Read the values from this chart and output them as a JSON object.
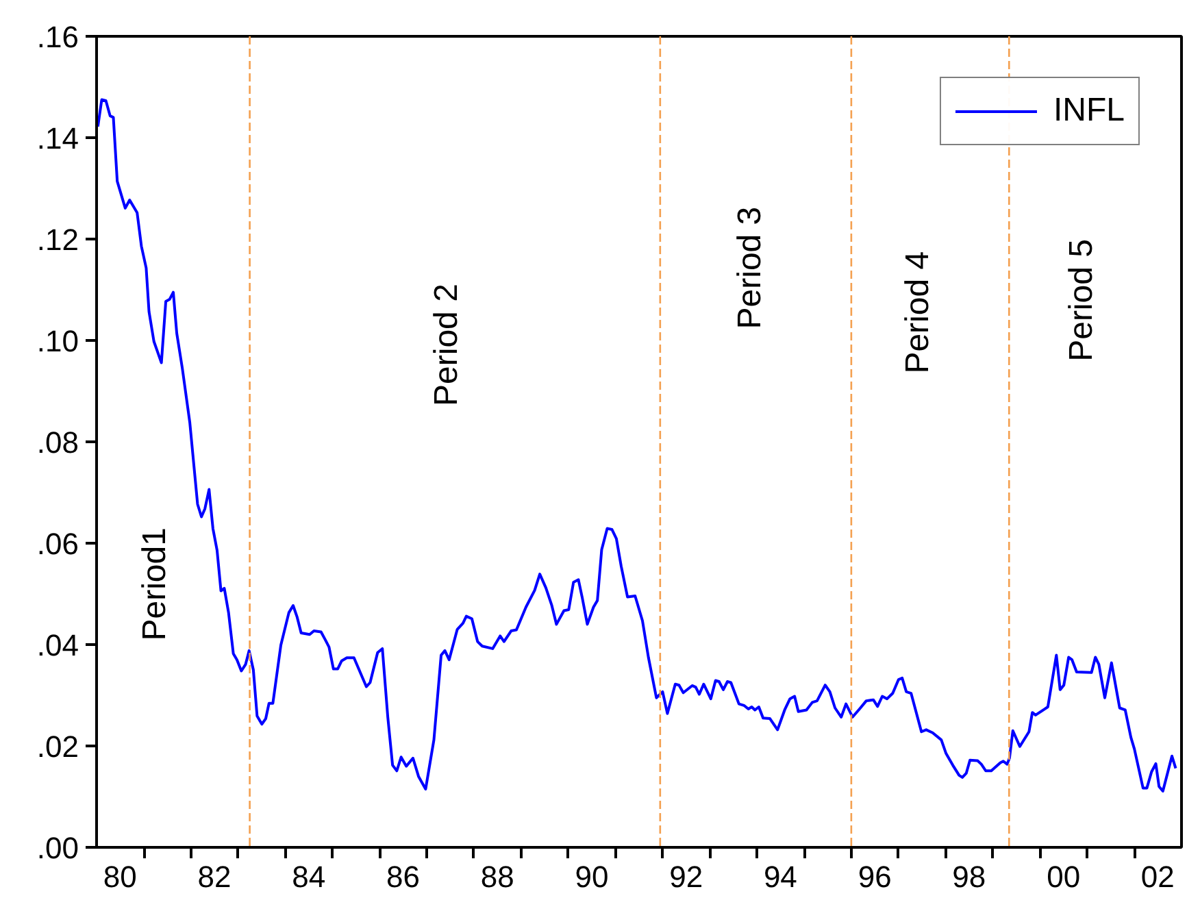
{
  "chart_data": {
    "type": "line",
    "x": [
      "1980-01-11",
      "1980-02-10",
      "1980-03-13",
      "1980-04-15",
      "1980-05-10",
      "1980-06-09",
      "1980-08-10",
      "1980-09-13",
      "1980-11-10",
      "1980-12-13",
      "1981-01-19",
      "1981-02-10",
      "1981-03-20",
      "1981-05-17",
      "1981-06-20",
      "1981-07-19",
      "1981-08-17",
      "1981-09-13",
      "1981-10-26",
      "1981-12-23",
      "1982-02-21",
      "1982-03-23",
      "1982-04-19",
      "1982-05-21",
      "1982-06-20",
      "1982-07-22",
      "1982-08-21",
      "1982-09-16",
      "1982-10-19",
      "1982-11-25",
      "1982-12-23",
      "1983-01-26",
      "1983-02-28",
      "1983-03-27",
      "1983-04-29",
      "1983-05-28",
      "1983-07-04",
      "1983-08-03",
      "1983-08-28",
      "1983-09-27",
      "1983-11-28",
      "1984-01-29",
      "1984-03-02",
      "1984-04-01",
      "1984-05-03",
      "1984-07-08",
      "1984-08-10",
      "1984-10-04",
      "1984-11-07",
      "1984-12-05",
      "1985-01-08",
      "1985-02-10",
      "1985-03-13",
      "1985-04-22",
      "1985-06-16",
      "1985-09-20",
      "1985-10-19",
      "1985-12-16",
      "1986-01-22",
      "1986-03-05",
      "1986-04-11",
      "1986-05-14",
      "1986-06-16",
      "1986-07-26",
      "1986-09-16",
      "1986-10-29",
      "1986-12-23",
      "1987-02-25",
      "1987-04-22",
      "1987-05-21",
      "1987-06-23",
      "1987-08-25",
      "1987-10-08",
      "1987-11-03",
      "1987-12-16",
      "1988-01-29",
      "1988-03-05",
      "1988-05-25",
      "1988-07-22",
      "1988-08-21",
      "1988-10-15",
      "1988-11-25",
      "1989-02-07",
      "1989-04-15",
      "1989-05-25",
      "1989-07-11",
      "1989-08-25",
      "1989-10-01",
      "1989-11-28",
      "1990-01-04",
      "1990-02-10",
      "1990-03-20",
      "1990-04-19",
      "1990-05-28",
      "1990-07-15",
      "1990-08-14",
      "1990-09-16",
      "1990-10-29",
      "1990-12-05",
      "1991-01-08",
      "1991-02-14",
      "1991-04-04",
      "1991-06-02",
      "1991-07-29",
      "1991-09-13",
      "1991-11-14",
      "1992-01-01",
      "1992-02-07",
      "1992-04-08",
      "1992-05-07",
      "1992-06-09",
      "1992-08-17",
      "1992-09-13",
      "1992-10-11",
      "1992-11-14",
      "1993-01-08",
      "1993-02-14",
      "1993-03-13",
      "1993-04-15",
      "1993-05-17",
      "1993-06-13",
      "1993-08-14",
      "1993-09-22",
      "1993-10-26",
      "1993-11-21",
      "1993-12-16",
      "1994-01-15",
      "1994-02-17",
      "1994-04-11",
      "1994-06-09",
      "1994-08-03",
      "1994-09-13",
      "1994-10-19",
      "1994-11-17",
      "1995-01-19",
      "1995-03-05",
      "1995-04-11",
      "1995-06-13",
      "1995-07-19",
      "1995-08-28",
      "1995-10-15",
      "1995-11-21",
      "1996-01-11",
      "1996-03-05",
      "1996-04-26",
      "1996-06-20",
      "1996-07-22",
      "1996-08-28",
      "1996-10-04",
      "1996-11-17",
      "1997-01-01",
      "1997-01-29",
      "1997-03-02",
      "1997-04-08",
      "1997-06-27",
      "1997-08-03",
      "1997-09-22",
      "1997-11-28",
      "1998-01-04",
      "1998-02-25",
      "1998-04-15",
      "1998-05-10",
      "1998-06-09",
      "1998-07-08",
      "1998-09-05",
      "1998-10-04",
      "1998-11-07",
      "1998-12-20",
      "1999-02-28",
      "1999-03-23",
      "1999-04-22",
      "1999-05-10",
      "1999-06-05",
      "1999-07-29",
      "1999-10-08",
      "1999-11-03",
      "1999-11-28",
      "2000-03-02",
      "2000-05-07",
      "2000-06-05",
      "2000-07-04",
      "2000-08-10",
      "2000-09-05",
      "2000-10-11",
      "2001-02-03",
      "2001-03-05",
      "2001-04-01",
      "2001-05-17",
      "2001-07-08",
      "2001-09-09",
      "2001-10-22",
      "2001-12-05",
      "2002-01-01",
      "2002-03-09",
      "2002-04-08",
      "2002-05-14",
      "2002-06-16",
      "2002-07-11",
      "2002-08-10",
      "2002-10-19",
      "2002-11-17"
    ],
    "series": [
      {
        "name": "INFL",
        "color": "#0000ff",
        "values": [
          0.1422,
          0.1475,
          0.1473,
          0.1443,
          0.144,
          0.1314,
          0.1261,
          0.1277,
          0.1252,
          0.1186,
          0.1143,
          0.1057,
          0.0998,
          0.0956,
          0.1077,
          0.1081,
          0.1095,
          0.1014,
          0.0945,
          0.0838,
          0.0677,
          0.0652,
          0.0668,
          0.0706,
          0.0629,
          0.0586,
          0.0506,
          0.0511,
          0.0463,
          0.0382,
          0.037,
          0.0348,
          0.0361,
          0.0388,
          0.035,
          0.0259,
          0.0243,
          0.0254,
          0.0284,
          0.0284,
          0.0399,
          0.0463,
          0.0477,
          0.0455,
          0.0423,
          0.042,
          0.0427,
          0.0425,
          0.0409,
          0.0395,
          0.0352,
          0.0352,
          0.0368,
          0.0374,
          0.0374,
          0.0317,
          0.0325,
          0.0384,
          0.0392,
          0.0257,
          0.0162,
          0.0151,
          0.0178,
          0.016,
          0.0176,
          0.014,
          0.0115,
          0.0212,
          0.0379,
          0.0388,
          0.037,
          0.043,
          0.0442,
          0.0456,
          0.0451,
          0.0406,
          0.0397,
          0.0392,
          0.0417,
          0.0406,
          0.0427,
          0.0429,
          0.0474,
          0.0507,
          0.0539,
          0.0512,
          0.0478,
          0.044,
          0.0467,
          0.0469,
          0.0523,
          0.0528,
          0.0492,
          0.044,
          0.0474,
          0.0487,
          0.0587,
          0.0629,
          0.0627,
          0.0609,
          0.0555,
          0.0494,
          0.0496,
          0.0447,
          0.0375,
          0.0295,
          0.0307,
          0.0264,
          0.0322,
          0.032,
          0.0305,
          0.0319,
          0.0316,
          0.0302,
          0.0322,
          0.0293,
          0.0329,
          0.0327,
          0.0311,
          0.0327,
          0.0325,
          0.0283,
          0.028,
          0.0273,
          0.0277,
          0.0271,
          0.0277,
          0.0255,
          0.0254,
          0.0232,
          0.0271,
          0.0293,
          0.0298,
          0.0268,
          0.0271,
          0.0286,
          0.0289,
          0.032,
          0.0307,
          0.0275,
          0.0257,
          0.0283,
          0.0257,
          0.0273,
          0.0289,
          0.0291,
          0.0278,
          0.0298,
          0.0293,
          0.0304,
          0.0331,
          0.0334,
          0.0307,
          0.0304,
          0.0228,
          0.0232,
          0.0226,
          0.0212,
          0.0185,
          0.0162,
          0.0142,
          0.0138,
          0.0146,
          0.0172,
          0.0171,
          0.0164,
          0.0151,
          0.0151,
          0.0167,
          0.017,
          0.0164,
          0.0176,
          0.023,
          0.0199,
          0.0228,
          0.0266,
          0.0261,
          0.0277,
          0.0379,
          0.0311,
          0.032,
          0.0375,
          0.037,
          0.0346,
          0.0345,
          0.0375,
          0.0361,
          0.0295,
          0.0364,
          0.0275,
          0.0271,
          0.0217,
          0.0194,
          0.0117,
          0.0117,
          0.0149,
          0.0165,
          0.012,
          0.0111,
          0.018,
          0.0156
        ]
      }
    ],
    "xlim": [
      "1980-01-01",
      "2003-01-01"
    ],
    "xticks": [
      {
        "value": "1980-07-01",
        "label": "80"
      },
      {
        "value": "1981-01-01",
        "label": null
      },
      {
        "value": "1982-01-01",
        "label": null
      },
      {
        "value": "1982-07-01",
        "label": "82"
      },
      {
        "value": "1983-01-01",
        "label": null
      },
      {
        "value": "1984-01-01",
        "label": null
      },
      {
        "value": "1984-07-01",
        "label": "84"
      },
      {
        "value": "1985-01-01",
        "label": null
      },
      {
        "value": "1986-01-01",
        "label": null
      },
      {
        "value": "1986-07-01",
        "label": "86"
      },
      {
        "value": "1987-01-01",
        "label": null
      },
      {
        "value": "1988-01-01",
        "label": null
      },
      {
        "value": "1988-07-01",
        "label": "88"
      },
      {
        "value": "1989-01-01",
        "label": null
      },
      {
        "value": "1990-01-01",
        "label": null
      },
      {
        "value": "1990-07-01",
        "label": "90"
      },
      {
        "value": "1991-01-01",
        "label": null
      },
      {
        "value": "1992-01-01",
        "label": null
      },
      {
        "value": "1992-07-01",
        "label": "92"
      },
      {
        "value": "1993-01-01",
        "label": null
      },
      {
        "value": "1994-01-01",
        "label": null
      },
      {
        "value": "1994-07-01",
        "label": "94"
      },
      {
        "value": "1995-01-01",
        "label": null
      },
      {
        "value": "1996-01-01",
        "label": null
      },
      {
        "value": "1996-07-01",
        "label": "96"
      },
      {
        "value": "1997-01-01",
        "label": null
      },
      {
        "value": "1998-01-01",
        "label": null
      },
      {
        "value": "1998-07-01",
        "label": "98"
      },
      {
        "value": "1999-01-01",
        "label": null
      },
      {
        "value": "2000-01-01",
        "label": null
      },
      {
        "value": "2000-07-01",
        "label": "00"
      },
      {
        "value": "2001-01-01",
        "label": null
      },
      {
        "value": "2002-01-01",
        "label": null
      },
      {
        "value": "2002-07-01",
        "label": "02"
      }
    ],
    "ylim": [
      0,
      0.16
    ],
    "yticks": [
      {
        "value": 0,
        "label": ".00"
      },
      {
        "value": 0.02,
        "label": ".02"
      },
      {
        "value": 0.04,
        "label": ".04"
      },
      {
        "value": 0.06,
        "label": ".06"
      },
      {
        "value": 0.08,
        "label": ".08"
      },
      {
        "value": 0.1,
        "label": ".10"
      },
      {
        "value": 0.12,
        "label": ".12"
      },
      {
        "value": 0.14,
        "label": ".14"
      },
      {
        "value": 0.16,
        "label": ".16"
      }
    ],
    "ref_lines": [
      {
        "axis": "x",
        "value": "1983-04-01",
        "color": "#f4a050",
        "line_style": "dashed"
      },
      {
        "axis": "x",
        "value": "1991-12-13",
        "color": "#f4a050",
        "line_style": "dashed"
      },
      {
        "axis": "x",
        "value": "1996-01-01",
        "color": "#f4a050",
        "line_style": "dashed"
      },
      {
        "axis": "x",
        "value": "1999-05-07",
        "color": "#f4a050",
        "line_style": "dashed"
      }
    ],
    "annotations": [
      "Period1",
      "Period 2",
      "Period 3",
      "Period 4",
      "Period 5"
    ],
    "legend": "top right",
    "line_style": "solid"
  }
}
